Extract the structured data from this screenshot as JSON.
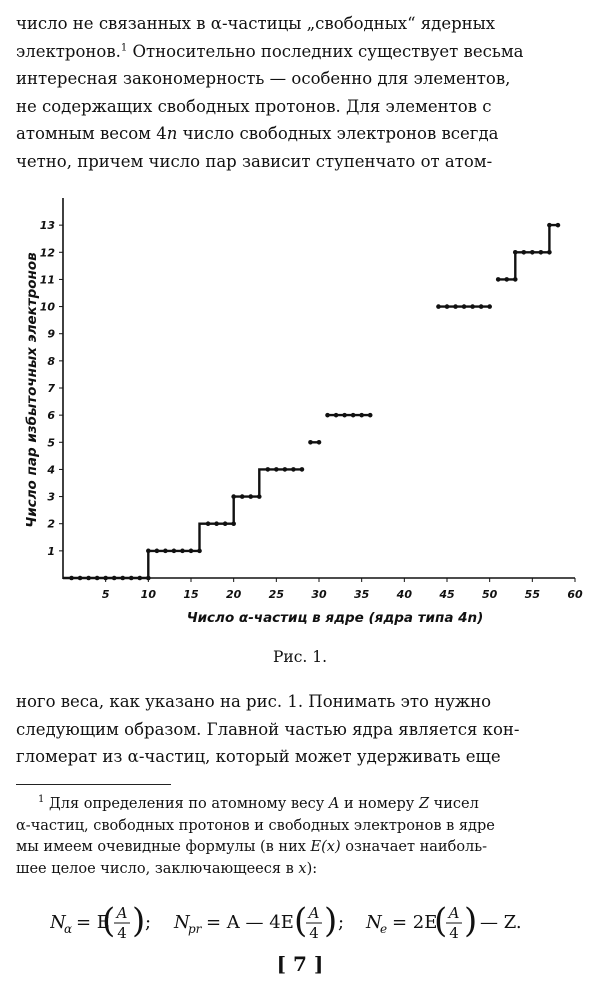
{
  "page": {
    "para1_lines": [
      "число не связанных в α-частицы „свободных“ ядерных",
      "электронов.",
      "Относительно последних существует весьма",
      "интересная закономерность — особенно для элементов,",
      "не содержащих свободных протонов. Для элементов с",
      "атомным весом 4",
      "число свободных электронов всегда",
      "четно, причем число пар зависит ступенчато от атом-"
    ],
    "para1_footnote_mark": "1",
    "para1_var_n": "n",
    "caption": "Рис. 1.",
    "para2_lines": [
      "ного веса, как указано на рис. 1. Понимать это нужно",
      "следующим образом. Главной частью ядра является кон-",
      "гломерат из α-частиц, который может удерживать еще"
    ],
    "footnote": {
      "mark": "1",
      "line1_a": "Для определения по атомному весу",
      "var_A": "A",
      "line1_b": "и номеру",
      "var_Z": "Z",
      "line1_c": "чисел",
      "line2": "α-частиц, свободных протонов и свободных электронов в ядре",
      "line3_a": "мы имеем очевидные формулы (в них",
      "var_Ex": "E(x)",
      "line3_b": "означает наиболь-",
      "line4_a": "шее целое число, заключающееся в",
      "var_x": "x",
      "line4_b": "):"
    },
    "formula": {
      "n_alpha": "N",
      "sub_alpha": "α",
      "eq1": "= E",
      "A": "A",
      "four": "4",
      "sep1": ";",
      "n_pr": "N",
      "sub_pr": "pr",
      "eq2": "= A — 4E",
      "sep2": ";",
      "n_e": "N",
      "sub_e": "e",
      "eq3": "= 2E",
      "tail": "— Z."
    },
    "page_number": "[ 7 ]"
  },
  "chart_data": {
    "type": "line",
    "xlabel": "Число α-частиц в ядре (ядра типа 4n)",
    "ylabel": "Число пар избыточных электронов",
    "xlim": [
      0,
      60
    ],
    "ylim": [
      0,
      14
    ],
    "xticks": [
      5,
      10,
      15,
      20,
      25,
      30,
      35,
      40,
      45,
      50,
      55,
      60
    ],
    "yticks": [
      1,
      2,
      3,
      4,
      5,
      6,
      7,
      8,
      9,
      10,
      11,
      12,
      13
    ],
    "grid": false,
    "legend": "none",
    "line_color": "#111111",
    "step_path": [
      [
        0,
        0
      ],
      [
        10,
        0
      ],
      [
        10,
        1
      ],
      [
        16,
        1
      ],
      [
        16,
        2
      ],
      [
        20,
        2
      ],
      [
        20,
        3
      ],
      [
        23,
        3
      ],
      [
        23,
        4
      ],
      [
        28,
        4
      ],
      [
        29,
        5
      ],
      [
        30,
        5
      ],
      [
        31,
        6
      ],
      [
        36,
        6
      ],
      [
        44,
        10
      ],
      [
        50,
        10
      ],
      [
        51,
        11
      ],
      [
        53,
        11
      ],
      [
        53,
        12
      ],
      [
        57,
        12
      ],
      [
        57,
        13
      ],
      [
        58,
        13
      ]
    ],
    "gaps_after_index": [
      9,
      11,
      13,
      15
    ],
    "points": [
      [
        1,
        0
      ],
      [
        2,
        0
      ],
      [
        3,
        0
      ],
      [
        4,
        0
      ],
      [
        5,
        0
      ],
      [
        6,
        0
      ],
      [
        7,
        0
      ],
      [
        8,
        0
      ],
      [
        9,
        0
      ],
      [
        10,
        0
      ],
      [
        10,
        1
      ],
      [
        11,
        1
      ],
      [
        12,
        1
      ],
      [
        13,
        1
      ],
      [
        14,
        1
      ],
      [
        15,
        1
      ],
      [
        16,
        1
      ],
      [
        17,
        2
      ],
      [
        18,
        2
      ],
      [
        19,
        2
      ],
      [
        20,
        2
      ],
      [
        20,
        3
      ],
      [
        21,
        3
      ],
      [
        22,
        3
      ],
      [
        23,
        3
      ],
      [
        24,
        4
      ],
      [
        25,
        4
      ],
      [
        26,
        4
      ],
      [
        27,
        4
      ],
      [
        28,
        4
      ],
      [
        29,
        5
      ],
      [
        30,
        5
      ],
      [
        31,
        6
      ],
      [
        32,
        6
      ],
      [
        33,
        6
      ],
      [
        34,
        6
      ],
      [
        35,
        6
      ],
      [
        36,
        6
      ],
      [
        44,
        10
      ],
      [
        45,
        10
      ],
      [
        46,
        10
      ],
      [
        47,
        10
      ],
      [
        48,
        10
      ],
      [
        49,
        10
      ],
      [
        50,
        10
      ],
      [
        51,
        11
      ],
      [
        52,
        11
      ],
      [
        53,
        11
      ],
      [
        53,
        12
      ],
      [
        54,
        12
      ],
      [
        55,
        12
      ],
      [
        56,
        12
      ],
      [
        57,
        12
      ],
      [
        57,
        13
      ],
      [
        58,
        13
      ]
    ]
  }
}
